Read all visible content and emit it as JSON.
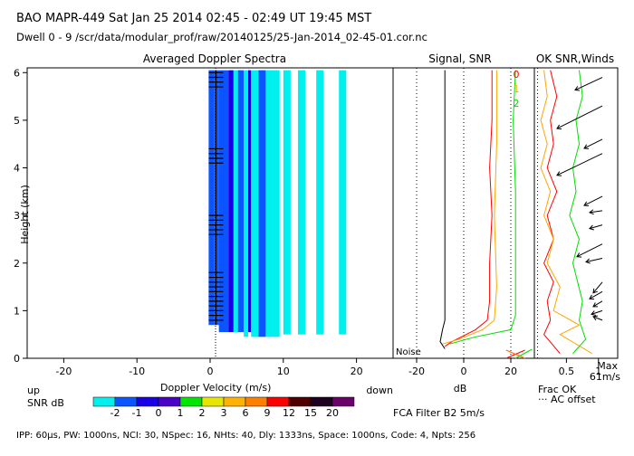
{
  "header": {
    "line1": "BAO  MAPR-449  Sat Jan 25 2014 02:45 - 02:49 UT 19:45 MST",
    "line2": "Dwell  0 - 9   /scr/data/modular_prof/raw/20140125/25-Jan-2014_02-45-01.cor.nc"
  },
  "footer": {
    "text": "IPP:  60μs,  PW: 1000ns,  NCI:  30,  NSpec: 16, NHts: 40,  Dly: 1333ns,  Space: 1000ns,  Code: 4,  Npts: 256"
  },
  "colorbar": {
    "label": "SNR dB",
    "ticks": [
      "-2",
      "-1",
      "0",
      "1",
      "2",
      "3",
      "6",
      "9",
      "12",
      "15",
      "20"
    ],
    "colors": [
      "#00f0f0",
      "#0a55ff",
      "#1a00e6",
      "#4b00c8",
      "#00e600",
      "#e6e600",
      "#ffb300",
      "#ff7f00",
      "#ff0000",
      "#500000",
      "#200020",
      "#6a006a"
    ]
  },
  "doppler": {
    "title": "Averaged Doppler Spectra",
    "xlabel": "Doppler Velocity (m/s)",
    "ylabel": "Height (km)",
    "left_note": "up",
    "right_note": "down",
    "xticks": [
      "-20",
      "-10",
      "0",
      "10",
      "20"
    ],
    "yticks": [
      "0",
      "1",
      "2",
      "3",
      "4",
      "5",
      "6"
    ]
  },
  "signal": {
    "title": "Signal, SNR",
    "xlabel": "dB",
    "noise_label": "Noise",
    "xticks": [
      "-20",
      "0",
      "20"
    ],
    "legend": [
      {
        "label": "0",
        "color": "#ff0000"
      },
      {
        "label": "1",
        "color": "#ffa500"
      },
      {
        "label": "2",
        "color": "#00dd00"
      }
    ],
    "filter_label": "FCA Filter B2  5m/s"
  },
  "winds": {
    "title": "OK SNR,Winds",
    "xticks": [
      "0.5",
      "1"
    ],
    "xlabel": "Frac OK",
    "offset_label": "··· AC offset",
    "max_label": "Max",
    "max_value": "61m/s"
  },
  "chart_data": [
    {
      "type": "heatmap",
      "title": "Averaged Doppler Spectra",
      "xlabel": "Doppler Velocity (m/s)",
      "ylabel": "Height (km)",
      "xlim": [
        -25,
        25
      ],
      "ylim": [
        0,
        6.1
      ],
      "columns": [
        {
          "v0": -0.2,
          "v1": 0.6,
          "h0": 0.7,
          "h1": 6.05,
          "snr": "-1"
        },
        {
          "v0": 0.6,
          "v1": 1.2,
          "h0": 0.7,
          "h1": 6.05,
          "snr": "-1"
        },
        {
          "v0": 1.2,
          "v1": 2.5,
          "h0": 0.55,
          "h1": 6.05,
          "snr": "-1"
        },
        {
          "v0": 2.5,
          "v1": 3.2,
          "h0": 0.55,
          "h1": 6.05,
          "snr": "0"
        },
        {
          "v0": 3.2,
          "v1": 3.8,
          "h0": 0.55,
          "h1": 6.05,
          "snr": "-2"
        },
        {
          "v0": 3.8,
          "v1": 4.6,
          "h0": 0.55,
          "h1": 6.05,
          "snr": "-1"
        },
        {
          "v0": 4.6,
          "v1": 5.2,
          "h0": 0.45,
          "h1": 6.05,
          "snr": "-2"
        },
        {
          "v0": 5.2,
          "v1": 5.6,
          "h0": 0.55,
          "h1": 6.05,
          "snr": "0"
        },
        {
          "v0": 5.6,
          "v1": 6.6,
          "h0": 0.45,
          "h1": 6.05,
          "snr": "-2"
        },
        {
          "v0": 6.6,
          "v1": 7.6,
          "h0": 0.45,
          "h1": 6.05,
          "snr": "-1"
        },
        {
          "v0": 7.6,
          "v1": 9.5,
          "h0": 0.45,
          "h1": 6.05,
          "snr": "-2"
        },
        {
          "v0": 10.0,
          "v1": 11.0,
          "h0": 0.5,
          "h1": 6.05,
          "snr": "-2"
        },
        {
          "v0": 12.0,
          "v1": 13.0,
          "h0": 0.5,
          "h1": 6.05,
          "snr": "-2"
        },
        {
          "v0": 14.5,
          "v1": 15.5,
          "h0": 0.5,
          "h1": 6.05,
          "snr": "-2"
        },
        {
          "v0": 17.6,
          "v1": 18.6,
          "h0": 0.5,
          "h1": 6.05,
          "snr": "-2"
        }
      ],
      "peak_marks_km": [
        0.8,
        0.9,
        1.0,
        1.1,
        1.2,
        1.3,
        1.4,
        1.5,
        1.6,
        1.7,
        1.8,
        2.6,
        2.7,
        2.8,
        2.9,
        3.0,
        4.1,
        4.2,
        4.3,
        4.4,
        5.7,
        5.8,
        5.9,
        6.0
      ]
    },
    {
      "type": "line",
      "title": "Signal, SNR",
      "xlabel": "dB",
      "xlim": [
        -30,
        30
      ],
      "ylim": [
        0,
        6.1
      ],
      "series": [
        {
          "name": "Noise",
          "color": "#000000",
          "points": [
            [
              -8,
              0.2
            ],
            [
              -10,
              0.35
            ],
            [
              -9,
              0.6
            ],
            [
              -8,
              0.8
            ],
            [
              -8,
              1.5
            ],
            [
              -8,
              3
            ],
            [
              -8,
              4.5
            ],
            [
              -8,
              6.05
            ]
          ]
        },
        {
          "name": "0",
          "color": "#ff0000",
          "points": [
            [
              -8,
              0.25
            ],
            [
              -5,
              0.35
            ],
            [
              5,
              0.6
            ],
            [
              10,
              0.8
            ],
            [
              11,
              1.2
            ],
            [
              11,
              2
            ],
            [
              12,
              3
            ],
            [
              11,
              4
            ],
            [
              12,
              5
            ],
            [
              12,
              6.05
            ]
          ]
        },
        {
          "name": "1",
          "color": "#ffa500",
          "points": [
            [
              -9,
              0.3
            ],
            [
              -2,
              0.4
            ],
            [
              8,
              0.6
            ],
            [
              13,
              0.8
            ],
            [
              14,
              1.5
            ],
            [
              13,
              3
            ],
            [
              14,
              4.5
            ],
            [
              14,
              6.05
            ]
          ]
        },
        {
          "name": "2",
          "color": "#00dd00",
          "points": [
            [
              -6,
              0.3
            ],
            [
              5,
              0.45
            ],
            [
              20,
              0.6
            ],
            [
              22,
              0.9
            ],
            [
              22,
              2
            ],
            [
              22,
              3.5
            ],
            [
              21,
              5
            ],
            [
              22,
              6.05
            ]
          ]
        }
      ]
    },
    {
      "type": "line",
      "title": "OK SNR,Winds",
      "xlabel": "Frac OK",
      "xlim": [
        0,
        1.3
      ],
      "ylim": [
        0,
        6.1
      ],
      "series": [
        {
          "name": "0",
          "color": "#ff0000",
          "points": [
            [
              0.4,
              0.1
            ],
            [
              0.15,
              0.5
            ],
            [
              0.25,
              0.8
            ],
            [
              0.2,
              1.2
            ],
            [
              0.3,
              1.6
            ],
            [
              0.15,
              2
            ],
            [
              0.3,
              2.5
            ],
            [
              0.2,
              3
            ],
            [
              0.35,
              3.5
            ],
            [
              0.2,
              4
            ],
            [
              0.3,
              4.5
            ],
            [
              0.25,
              5
            ],
            [
              0.35,
              5.5
            ],
            [
              0.25,
              6.05
            ]
          ]
        },
        {
          "name": "1",
          "color": "#ffa500",
          "points": [
            [
              0.9,
              0.1
            ],
            [
              0.4,
              0.5
            ],
            [
              0.7,
              0.7
            ],
            [
              0.3,
              1
            ],
            [
              0.4,
              1.5
            ],
            [
              0.2,
              2
            ],
            [
              0.3,
              2.5
            ],
            [
              0.15,
              3
            ],
            [
              0.25,
              3.5
            ],
            [
              0.1,
              4
            ],
            [
              0.2,
              4.5
            ],
            [
              0.1,
              5
            ],
            [
              0.2,
              5.5
            ],
            [
              0.15,
              6.05
            ]
          ]
        },
        {
          "name": "2",
          "color": "#00dd00",
          "points": [
            [
              0.6,
              0.1
            ],
            [
              0.8,
              0.4
            ],
            [
              0.7,
              0.8
            ],
            [
              0.75,
              1.2
            ],
            [
              0.6,
              2
            ],
            [
              0.7,
              2.5
            ],
            [
              0.55,
              3
            ],
            [
              0.65,
              3.5
            ],
            [
              0.6,
              4
            ],
            [
              0.7,
              4.5
            ],
            [
              0.65,
              5
            ],
            [
              0.75,
              5.5
            ],
            [
              0.7,
              6.05
            ]
          ]
        }
      ],
      "winds": [
        {
          "h": 0.8,
          "dx": -10,
          "dy": -4
        },
        {
          "h": 1.0,
          "dx": -12,
          "dy": 4
        },
        {
          "h": 1.2,
          "dx": -10,
          "dy": 6
        },
        {
          "h": 1.4,
          "dx": -14,
          "dy": 8
        },
        {
          "h": 1.6,
          "dx": -10,
          "dy": 12
        },
        {
          "h": 2.1,
          "dx": -18,
          "dy": 4
        },
        {
          "h": 2.4,
          "dx": -28,
          "dy": 14
        },
        {
          "h": 2.8,
          "dx": -14,
          "dy": 4
        },
        {
          "h": 3.1,
          "dx": -14,
          "dy": 2
        },
        {
          "h": 3.4,
          "dx": -20,
          "dy": 10
        },
        {
          "h": 4.3,
          "dx": -50,
          "dy": 24
        },
        {
          "h": 4.6,
          "dx": -20,
          "dy": 10
        },
        {
          "h": 5.3,
          "dx": -50,
          "dy": 25
        },
        {
          "h": 5.9,
          "dx": -30,
          "dy": 14
        }
      ]
    }
  ]
}
